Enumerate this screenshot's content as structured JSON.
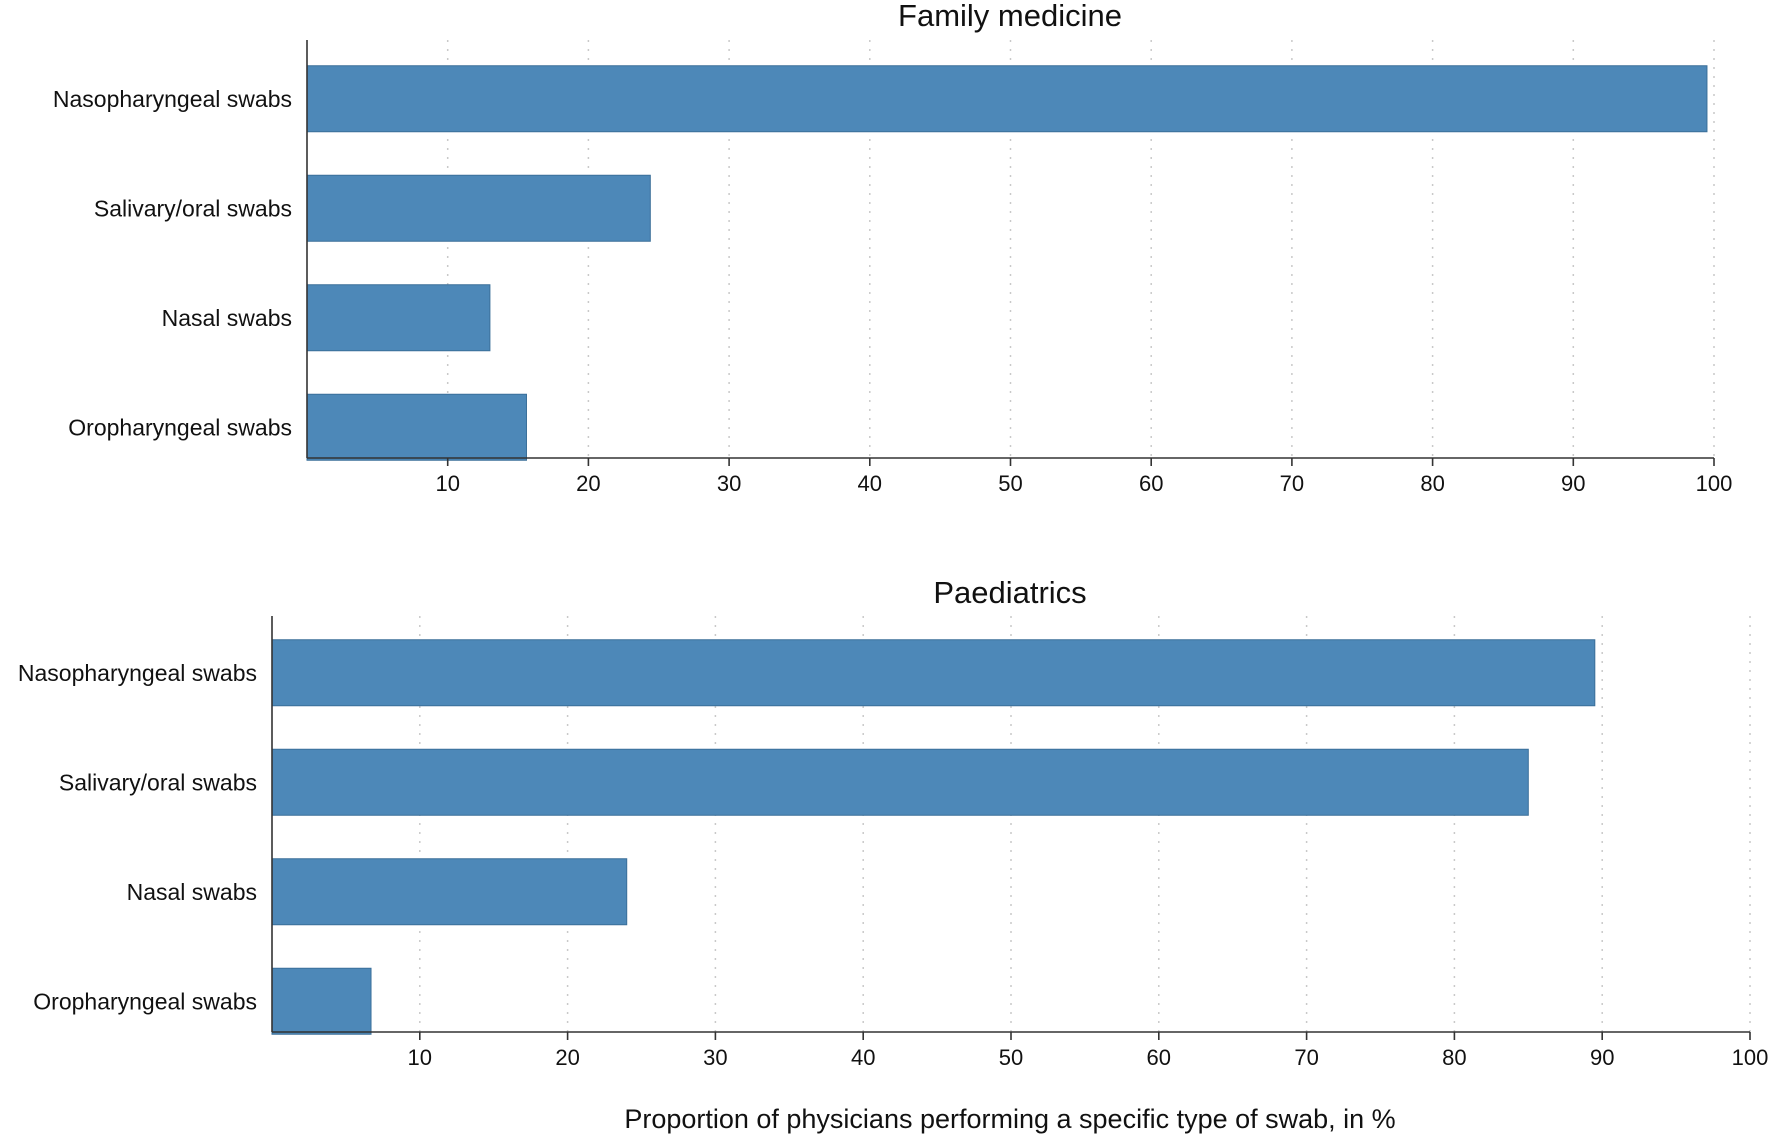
{
  "chart_data": [
    {
      "type": "bar",
      "orientation": "horizontal",
      "title": "Family medicine",
      "categories": [
        "Nasopharyngeal swabs",
        "Salivary/oral swabs",
        "Nasal swabs",
        "Oropharyngeal swabs"
      ],
      "values": [
        99.5,
        24.4,
        13.0,
        15.6
      ],
      "xlim": [
        0,
        100
      ],
      "xticks": [
        10,
        20,
        30,
        40,
        50,
        60,
        70,
        80,
        90,
        100
      ],
      "grid": "vertical dotted",
      "color": "#4d88b8"
    },
    {
      "type": "bar",
      "orientation": "horizontal",
      "title": "Paediatrics",
      "categories": [
        "Nasopharyngeal swabs",
        "Salivary/oral swabs",
        "Nasal swabs",
        "Oropharyngeal swabs"
      ],
      "values": [
        89.5,
        85.0,
        24.0,
        6.7
      ],
      "xlim": [
        0,
        100
      ],
      "xticks": [
        10,
        20,
        30,
        40,
        50,
        60,
        70,
        80,
        90,
        100
      ],
      "grid": "vertical dotted",
      "color": "#4d88b8"
    }
  ],
  "xlabel": "Proportion of physicians performing a specific type of swab, in %"
}
